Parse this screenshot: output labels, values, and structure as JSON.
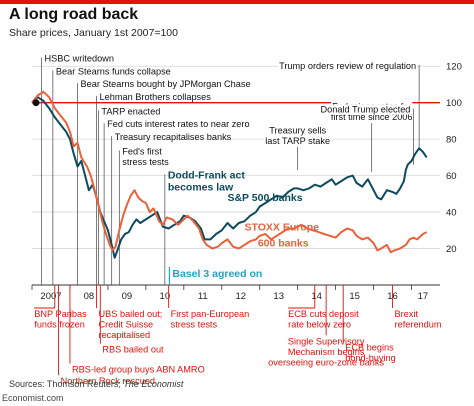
{
  "header": {
    "title": "A long road back",
    "subtitle": "Share prices, January 1st 2007=100"
  },
  "footer": {
    "source_prefix": "Sources: Thomson Reuters; ",
    "source_pub": "The Economist",
    "site": "Economist.com"
  },
  "colors": {
    "us": "#0d4a5f",
    "eu": "#e8633a",
    "accent": "#e3120b",
    "basel": "#1fa3c9",
    "grid": "#d7d7d7",
    "axis": "#333333"
  },
  "chart_data": {
    "type": "line",
    "x_unit": "year",
    "xlim": [
      2007,
      2017.75
    ],
    "ylim": [
      0,
      130
    ],
    "y_ticks": [
      20,
      40,
      60,
      80,
      100,
      120
    ],
    "x_ticks": [
      {
        "label": "2007",
        "x": 2007.5
      },
      {
        "label": "08",
        "x": 2008.5
      },
      {
        "label": "09",
        "x": 2009.5
      },
      {
        "label": "10",
        "x": 2010.5
      },
      {
        "label": "11",
        "x": 2011.5
      },
      {
        "label": "12",
        "x": 2012.5
      },
      {
        "label": "13",
        "x": 2013.5
      },
      {
        "label": "14",
        "x": 2014.5
      },
      {
        "label": "15",
        "x": 2015.5
      },
      {
        "label": "16",
        "x": 2016.5
      },
      {
        "label": "17",
        "x": 2017.3
      }
    ],
    "reference_line": 100,
    "grid": true,
    "series": [
      {
        "name": "S&P 500 banks",
        "color": "#0d4a5f",
        "points": [
          [
            2007.0,
            100
          ],
          [
            2007.15,
            103
          ],
          [
            2007.3,
            101
          ],
          [
            2007.45,
            97
          ],
          [
            2007.6,
            92
          ],
          [
            2007.75,
            88
          ],
          [
            2007.9,
            84
          ],
          [
            2008.0,
            80
          ],
          [
            2008.1,
            72
          ],
          [
            2008.2,
            65
          ],
          [
            2008.3,
            68
          ],
          [
            2008.4,
            60
          ],
          [
            2008.5,
            52
          ],
          [
            2008.6,
            55
          ],
          [
            2008.7,
            48
          ],
          [
            2008.8,
            40
          ],
          [
            2008.9,
            35
          ],
          [
            2009.0,
            30
          ],
          [
            2009.1,
            22
          ],
          [
            2009.18,
            15
          ],
          [
            2009.25,
            19
          ],
          [
            2009.35,
            25
          ],
          [
            2009.45,
            28
          ],
          [
            2009.55,
            29
          ],
          [
            2009.65,
            33
          ],
          [
            2009.75,
            36
          ],
          [
            2009.85,
            34
          ],
          [
            2010.0,
            36
          ],
          [
            2010.15,
            38
          ],
          [
            2010.3,
            40
          ],
          [
            2010.45,
            32
          ],
          [
            2010.6,
            31
          ],
          [
            2010.75,
            33
          ],
          [
            2010.9,
            35
          ],
          [
            2011.0,
            38
          ],
          [
            2011.15,
            37
          ],
          [
            2011.3,
            35
          ],
          [
            2011.45,
            31
          ],
          [
            2011.55,
            25
          ],
          [
            2011.7,
            25
          ],
          [
            2011.85,
            28
          ],
          [
            2012.0,
            30
          ],
          [
            2012.15,
            34
          ],
          [
            2012.3,
            31
          ],
          [
            2012.45,
            34
          ],
          [
            2012.6,
            35
          ],
          [
            2012.75,
            38
          ],
          [
            2012.9,
            40
          ],
          [
            2013.0,
            43
          ],
          [
            2013.15,
            45
          ],
          [
            2013.3,
            47
          ],
          [
            2013.45,
            49
          ],
          [
            2013.6,
            48
          ],
          [
            2013.75,
            51
          ],
          [
            2013.9,
            53
          ],
          [
            2014.0,
            53
          ],
          [
            2014.15,
            52
          ],
          [
            2014.3,
            53
          ],
          [
            2014.45,
            55
          ],
          [
            2014.6,
            54
          ],
          [
            2014.75,
            56
          ],
          [
            2014.9,
            58
          ],
          [
            2015.0,
            55
          ],
          [
            2015.15,
            57
          ],
          [
            2015.3,
            59
          ],
          [
            2015.45,
            60
          ],
          [
            2015.55,
            56
          ],
          [
            2015.7,
            54
          ],
          [
            2015.85,
            58
          ],
          [
            2016.0,
            52
          ],
          [
            2016.1,
            48
          ],
          [
            2016.2,
            47
          ],
          [
            2016.35,
            52
          ],
          [
            2016.5,
            51
          ],
          [
            2016.6,
            50
          ],
          [
            2016.7,
            53
          ],
          [
            2016.8,
            57
          ],
          [
            2016.85,
            63
          ],
          [
            2016.9,
            66
          ],
          [
            2017.0,
            68
          ],
          [
            2017.1,
            72
          ],
          [
            2017.2,
            75
          ],
          [
            2017.3,
            73
          ],
          [
            2017.4,
            70
          ]
        ]
      },
      {
        "name": "STOXX Europe 600 banks",
        "color": "#e8633a",
        "points": [
          [
            2007.0,
            100
          ],
          [
            2007.15,
            104
          ],
          [
            2007.3,
            106
          ],
          [
            2007.45,
            103
          ],
          [
            2007.6,
            97
          ],
          [
            2007.75,
            93
          ],
          [
            2007.9,
            89
          ],
          [
            2008.0,
            84
          ],
          [
            2008.1,
            76
          ],
          [
            2008.2,
            78
          ],
          [
            2008.3,
            70
          ],
          [
            2008.45,
            65
          ],
          [
            2008.55,
            60
          ],
          [
            2008.65,
            52
          ],
          [
            2008.75,
            44
          ],
          [
            2008.85,
            35
          ],
          [
            2008.95,
            28
          ],
          [
            2009.05,
            22
          ],
          [
            2009.12,
            19
          ],
          [
            2009.2,
            21
          ],
          [
            2009.3,
            30
          ],
          [
            2009.4,
            38
          ],
          [
            2009.5,
            44
          ],
          [
            2009.6,
            49
          ],
          [
            2009.7,
            52
          ],
          [
            2009.8,
            48
          ],
          [
            2009.9,
            46
          ],
          [
            2010.0,
            45
          ],
          [
            2010.1,
            40
          ],
          [
            2010.2,
            42
          ],
          [
            2010.35,
            35
          ],
          [
            2010.45,
            33
          ],
          [
            2010.55,
            37
          ],
          [
            2010.7,
            36
          ],
          [
            2010.85,
            33
          ],
          [
            2011.0,
            36
          ],
          [
            2011.1,
            38
          ],
          [
            2011.25,
            35
          ],
          [
            2011.4,
            31
          ],
          [
            2011.5,
            25
          ],
          [
            2011.6,
            22
          ],
          [
            2011.75,
            20
          ],
          [
            2011.9,
            21
          ],
          [
            2012.0,
            23
          ],
          [
            2012.15,
            25
          ],
          [
            2012.3,
            21
          ],
          [
            2012.45,
            20
          ],
          [
            2012.6,
            22
          ],
          [
            2012.75,
            24
          ],
          [
            2012.9,
            25
          ],
          [
            2013.0,
            27
          ],
          [
            2013.15,
            28
          ],
          [
            2013.3,
            25
          ],
          [
            2013.45,
            27
          ],
          [
            2013.6,
            29
          ],
          [
            2013.75,
            31
          ],
          [
            2013.9,
            31
          ],
          [
            2014.0,
            32
          ],
          [
            2014.1,
            33
          ],
          [
            2014.25,
            31
          ],
          [
            2014.4,
            30
          ],
          [
            2014.55,
            29
          ],
          [
            2014.7,
            28
          ],
          [
            2014.85,
            27
          ],
          [
            2015.0,
            26
          ],
          [
            2015.15,
            29
          ],
          [
            2015.3,
            31
          ],
          [
            2015.45,
            30
          ],
          [
            2015.55,
            27
          ],
          [
            2015.7,
            25
          ],
          [
            2015.85,
            26
          ],
          [
            2016.0,
            23
          ],
          [
            2016.1,
            19
          ],
          [
            2016.2,
            20
          ],
          [
            2016.35,
            22
          ],
          [
            2016.45,
            18
          ],
          [
            2016.55,
            19
          ],
          [
            2016.7,
            20
          ],
          [
            2016.85,
            22
          ],
          [
            2016.95,
            25
          ],
          [
            2017.05,
            26
          ],
          [
            2017.15,
            25
          ],
          [
            2017.3,
            28
          ],
          [
            2017.4,
            29
          ]
        ]
      }
    ],
    "series_labels": [
      {
        "text": "S&P 500 banks",
        "x": 2012.15,
        "y": 46,
        "color": "#0d4a5f"
      },
      {
        "text": "STOXX Europe",
        "x": 2012.6,
        "y": 30,
        "color": "#e8633a"
      },
      {
        "text": "600 banks",
        "x": 2012.95,
        "y": 21,
        "color": "#e8633a"
      }
    ],
    "annotations_above": [
      {
        "x": 2007.25,
        "lines": [
          "HSBC writedown"
        ],
        "y_text": 122
      },
      {
        "x": 2007.55,
        "lines": [
          "Bear Stearns funds collapse"
        ],
        "y_text": 115
      },
      {
        "x": 2008.2,
        "lines": [
          "Bear Stearns bought by JPMorgan Chase"
        ],
        "y_text": 108
      },
      {
        "x": 2008.7,
        "lines": [
          "Lehman Brothers collapses"
        ],
        "y_text": 101
      },
      {
        "x": 2008.75,
        "lines": [
          "TARP enacted"
        ],
        "y_text": 93
      },
      {
        "x": 2008.9,
        "lines": [
          "Fed cuts interest rates to near zero"
        ],
        "y_text": 86
      },
      {
        "x": 2009.1,
        "lines": [
          "Treasury recapitalises banks"
        ],
        "y_text": 79
      },
      {
        "x": 2009.3,
        "lines": [
          "Fed's first",
          "stress tests"
        ],
        "y_text": 71
      },
      {
        "x": 2010.5,
        "lines": [
          "Dodd-Frank act",
          "becomes law"
        ],
        "y_text": 58,
        "bold": true
      },
      {
        "x": 2014.0,
        "lines": [
          "Treasury sells",
          "last TARP stake"
        ],
        "y_text": 73,
        "align": "middle",
        "leader_to": 63
      },
      {
        "x": 2015.95,
        "lines": [
          "Fed raises rates for",
          "first time since 2006"
        ],
        "y_text": 86,
        "align": "middle",
        "leader_to": 62
      },
      {
        "x": 2017.05,
        "lines": [
          "Donald Trump elected"
        ],
        "y_text": 94,
        "align": "end",
        "leader_to": 66
      },
      {
        "x": 2017.2,
        "lines": [
          "Trump orders review of regulation"
        ],
        "y_text": 118,
        "align": "end",
        "leader_to": 74
      }
    ],
    "basel": {
      "x": 2010.7,
      "label": "Basel 3 agreed on",
      "y_text": 6
    },
    "annotations_below": [
      {
        "x": 2007.6,
        "lines": [
          "BNP Paribas",
          "funds frozen"
        ],
        "row": 0,
        "align": "start",
        "text_x": 2007.06
      },
      {
        "x": 2008.7,
        "lines": [
          "UBS bailed out;",
          "Credit Suisse",
          "recapitalised"
        ],
        "row": 0,
        "align": "start"
      },
      {
        "x": 2008.8,
        "lines": [
          "RBS bailed out"
        ],
        "row": 3.4,
        "align": "start"
      },
      {
        "x": 2008.0,
        "lines": [
          "RBS-led group buys ABN AMRO"
        ],
        "row": 5.3,
        "align": "start"
      },
      {
        "x": 2007.7,
        "lines": [
          "Northern Rock rescued"
        ],
        "row": 6.4,
        "align": "start"
      },
      {
        "x": 2010.6,
        "lines": [
          "First pan-European",
          "stress tests"
        ],
        "row": 0,
        "align": "start"
      },
      {
        "x": 2014.45,
        "lines": [
          "ECB cuts deposit",
          "rate below zero"
        ],
        "row": 0,
        "align": "start",
        "text_x": 2013.75
      },
      {
        "x": 2014.75,
        "lines": [
          "Single Supervisory",
          "Mechanism begins",
          "overseeing euro-zone banks"
        ],
        "row": 2.6,
        "align": "middle"
      },
      {
        "x": 2015.2,
        "lines": [
          "ECB begins",
          "bond-buying"
        ],
        "row": 3.2,
        "align": "start"
      },
      {
        "x": 2016.5,
        "lines": [
          "Brexit",
          "referendum"
        ],
        "row": 0,
        "align": "start"
      }
    ]
  }
}
